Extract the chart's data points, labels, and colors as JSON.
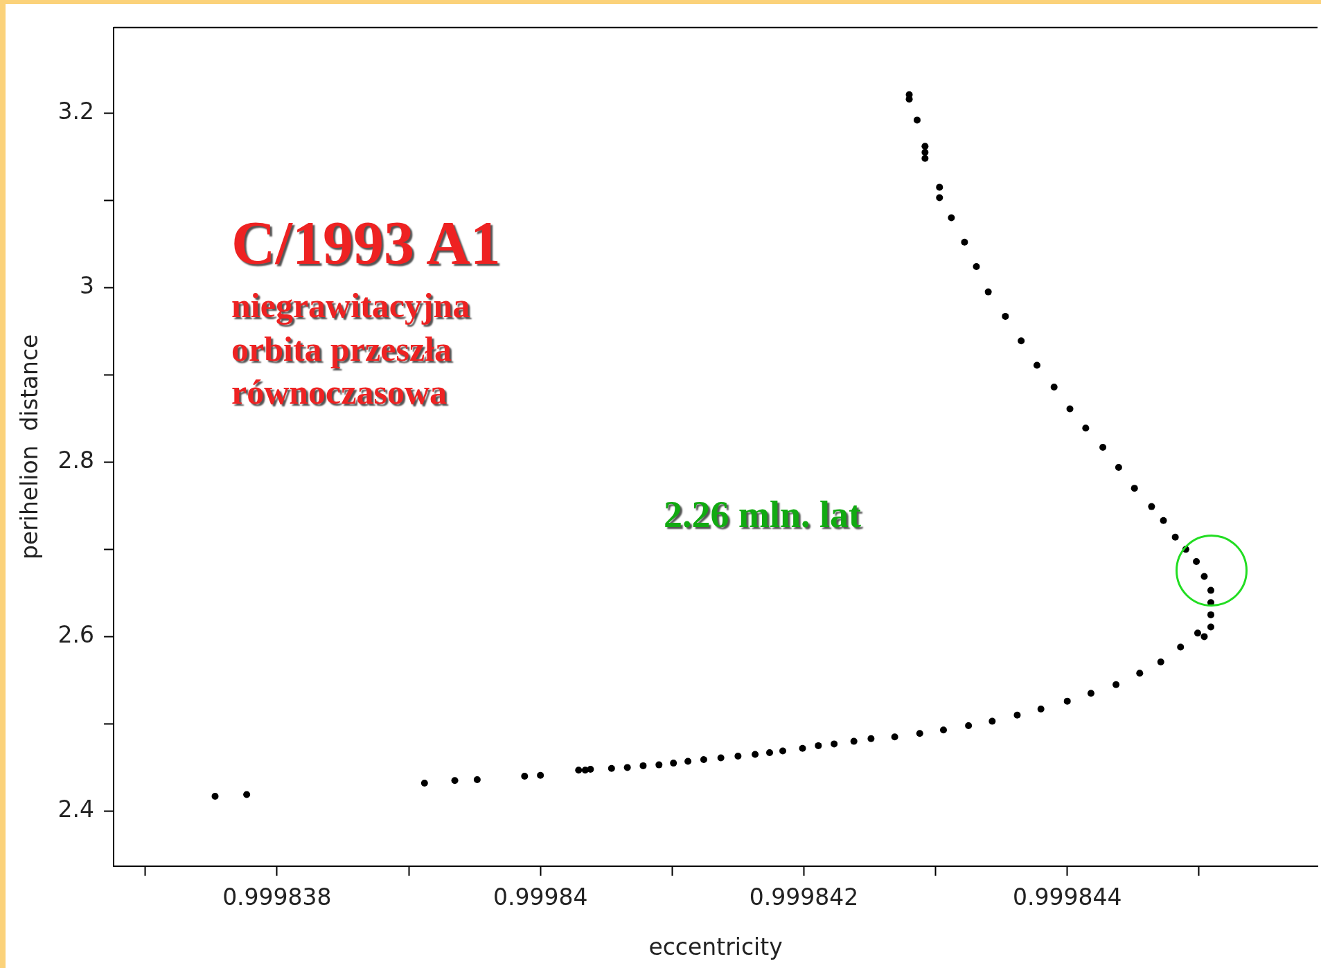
{
  "chart_data": {
    "type": "scatter",
    "xlabel": "eccentricity",
    "ylabel": "perihelion  distance",
    "xlim": [
      0.99983676,
      0.9998459
    ],
    "ylim": [
      2.337,
      3.298
    ],
    "xticks": [
      {
        "value": 0.999837,
        "label": null
      },
      0.999838,
      {
        "value": 0.999839,
        "label": null
      },
      0.99984,
      {
        "value": 0.999841,
        "label": null
      },
      0.999842,
      {
        "value": 0.999843,
        "label": null
      },
      0.999844,
      {
        "value": 0.999845,
        "label": null
      }
    ],
    "yticks": [
      2.4,
      {
        "value": 2.5,
        "label": null
      },
      2.6,
      {
        "value": 2.7,
        "label": null
      },
      2.8,
      {
        "value": 2.9,
        "label": null
      },
      3,
      {
        "value": 3.1,
        "label": null
      },
      3.2
    ],
    "grid": false,
    "legend": false,
    "marker": "circle",
    "annotations": [
      "C/1993 A1",
      "niegrawitacyjna orbita przeszła równoczasowa",
      "2.26 mln. lat"
    ],
    "series": [
      {
        "color": "#000000",
        "x": [
          0.99983753,
          0.99983777,
          0.99983912,
          0.99983935,
          0.99983952,
          0.99983988,
          0.99984,
          0.99984029,
          0.99984034,
          0.99984038,
          0.99984054,
          0.99984066,
          0.99984078,
          0.9998409,
          0.99984101,
          0.99984112,
          0.99984124,
          0.99984137,
          0.9998415,
          0.99984163,
          0.99984174,
          0.99984184,
          0.99984199,
          0.99984211,
          0.99984223,
          0.99984238,
          0.99984251,
          0.99984269,
          0.99984288,
          0.99984306,
          0.99984325,
          0.99984343,
          0.99984362,
          0.9998438,
          0.999844,
          0.99984418,
          0.99984437,
          0.99984455,
          0.99984471,
          0.99984486,
          0.99984499,
          0.99984504,
          0.99984509,
          0.99984509,
          0.99984509,
          0.99984509,
          0.99984504,
          0.99984498,
          0.9998449,
          0.99984482,
          0.99984473,
          0.99984464,
          0.99984451,
          0.99984439,
          0.99984427,
          0.99984414,
          0.99984402,
          0.9998439,
          0.99984377,
          0.99984365,
          0.99984353,
          0.9998434,
          0.99984331,
          0.99984322,
          0.99984312,
          0.99984303,
          0.99984303,
          0.99984292,
          0.99984292,
          0.99984292,
          0.99984286,
          0.9998428,
          0.9998428
        ],
        "values": [
          2.417,
          2.419,
          2.432,
          2.435,
          2.436,
          2.44,
          2.441,
          2.447,
          2.447,
          2.448,
          2.449,
          2.45,
          2.452,
          2.453,
          2.455,
          2.457,
          2.459,
          2.461,
          2.463,
          2.465,
          2.467,
          2.469,
          2.472,
          2.475,
          2.477,
          2.48,
          2.483,
          2.485,
          2.489,
          2.493,
          2.498,
          2.503,
          2.51,
          2.517,
          2.526,
          2.535,
          2.545,
          2.558,
          2.571,
          2.588,
          2.604,
          2.6,
          2.611,
          2.625,
          2.639,
          2.653,
          2.669,
          2.686,
          2.7,
          2.714,
          2.733,
          2.749,
          2.77,
          2.794,
          2.817,
          2.839,
          2.861,
          2.886,
          2.911,
          2.939,
          2.967,
          2.995,
          3.024,
          3.052,
          3.08,
          3.103,
          3.115,
          3.148,
          3.155,
          3.162,
          3.192,
          3.216,
          3.221
        ]
      }
    ]
  }
}
